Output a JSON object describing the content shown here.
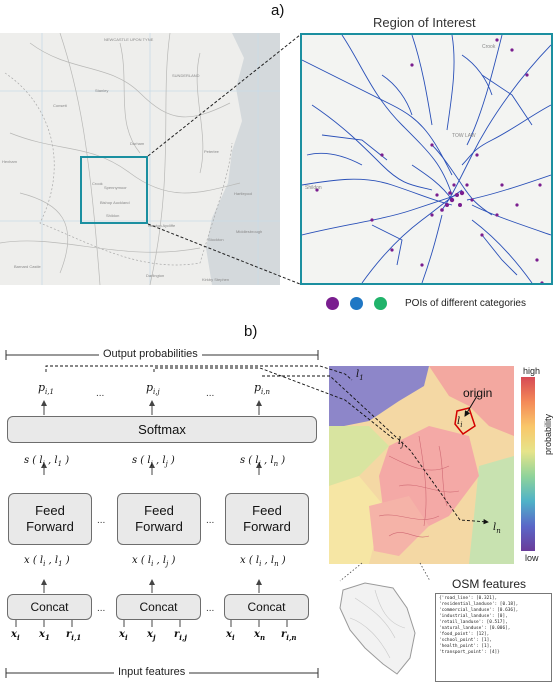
{
  "panel_a": {
    "label": "a)",
    "roi_title": "Region of Interest",
    "map_places": [
      "NEWCASTLE UPON TYNE",
      "SUNDERLAND",
      "Consett",
      "Stanley",
      "Hexham",
      "Peterlee",
      "Durham",
      "Crook",
      "Spennymoor",
      "Bishop Auckland",
      "Hartlepool",
      "Shildon",
      "Newton Aycliffe",
      "Barnard Castle",
      "Darlington",
      "Stockton",
      "Middlesbrough",
      "Kirkby Stephen"
    ],
    "roi_places": [
      "Crook",
      "TOW LAW",
      "Shildon"
    ],
    "legend": {
      "text": "POIs of different categories",
      "colors": [
        "#7a1e8f",
        "#1f77c4",
        "#20b36a"
      ]
    },
    "colors": {
      "frame": "#1b8fa0",
      "roads": "#2a50b8",
      "poi": "#7a1e8f"
    }
  },
  "panel_b": {
    "label": "b)",
    "output_header": "Output probabilities",
    "input_header": "Input features",
    "softmax": "Softmax",
    "feed_forward": [
      "Feed",
      "Forward"
    ],
    "concat": "Concat",
    "ellipsis": "...",
    "columns": [
      {
        "p": "p",
        "p_sub": "i,1",
        "s": "s ( l",
        "s_sub1": "i",
        "s_mid": " , l",
        "s_sub2": "1",
        "s_end": " )",
        "x": "x ( l",
        "x_sub1": "i",
        "x_mid": " , l",
        "x_sub2": "1",
        "x_end": " )",
        "in1": "x",
        "in1_sub": "i",
        "in2": "x",
        "in2_sub": "1",
        "in3": "r",
        "in3_sub": "i,1"
      },
      {
        "p": "p",
        "p_sub": "i,j",
        "s": "s ( l",
        "s_sub1": "i",
        "s_mid": " , l",
        "s_sub2": "j",
        "s_end": " )",
        "x": "x ( l",
        "x_sub1": "i",
        "x_mid": " , l",
        "x_sub2": "j",
        "x_end": " )",
        "in1": "x",
        "in1_sub": "i",
        "in2": "x",
        "in2_sub": "j",
        "in3": "r",
        "in3_sub": "i,j"
      },
      {
        "p": "p",
        "p_sub": "i,n",
        "s": "s ( l",
        "s_sub1": "i",
        "s_mid": " , l",
        "s_sub2": "n",
        "s_end": " )",
        "x": "x ( l",
        "x_sub1": "i",
        "x_mid": " , l",
        "x_sub2": "n",
        "x_end": " )",
        "in1": "x",
        "in1_sub": "i",
        "in2": "x",
        "in2_sub": "n",
        "in3": "r",
        "in3_sub": "i,n"
      }
    ],
    "map_labels": {
      "l1": "l",
      "l1_sub": "1",
      "li": "l",
      "li_sub": "i",
      "lj": "l",
      "lj_sub": "j",
      "ln": "l",
      "ln_sub": "n",
      "origin": "origin"
    },
    "colorbar": {
      "high": "high",
      "low": "low",
      "title": "probability"
    },
    "osm_title": "OSM features",
    "osm_lines": [
      "{'road_line': [0.321],",
      " 'residential_landuse': [0.18],",
      " 'commercial_landuse': [0.636],",
      " 'industrial_landuse': [0],",
      " 'retail_landuse': [0.517],",
      " 'natural_landuse': [0.006],",
      " 'food_point': [12],",
      " 'school_point': [1],",
      " 'health_point': [1],",
      " 'transport_point': [4]}"
    ]
  }
}
